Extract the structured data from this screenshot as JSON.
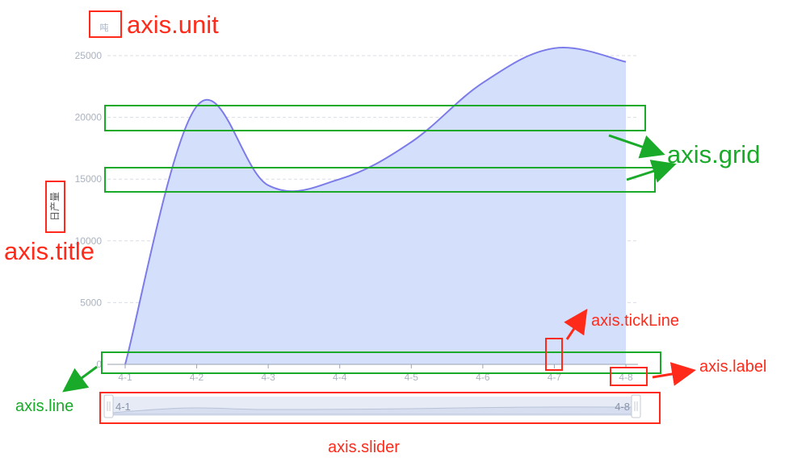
{
  "chart_data": {
    "type": "area",
    "x": [
      "4-1",
      "4-2",
      "4-3",
      "4-4",
      "4-5",
      "4-6",
      "4-7",
      "4-8"
    ],
    "values": [
      0,
      20900,
      14500,
      15000,
      18000,
      22800,
      25600,
      24500
    ],
    "ylim": [
      0,
      25000
    ],
    "yticks": [
      0,
      5000,
      10000,
      15000,
      20000,
      25000
    ],
    "ylabel": "日产量",
    "unit": "吨",
    "grid": true,
    "slider": {
      "start_label": "4-1",
      "end_label": "4-8"
    },
    "colors": {
      "line": "#7b7bea",
      "fill": "#d4e0fb",
      "grid": "#d9dde5",
      "axis": "#9aa3b2"
    }
  },
  "annotations": {
    "unit": "axis.unit",
    "title": "axis.title",
    "grid": "axis.grid",
    "tickLine": "axis.tickLine",
    "label": "axis.label",
    "line": "axis.line",
    "slider": "axis.slider"
  },
  "annotation_colors": {
    "red": "#ff2a1a",
    "green": "#1aaa2a"
  }
}
